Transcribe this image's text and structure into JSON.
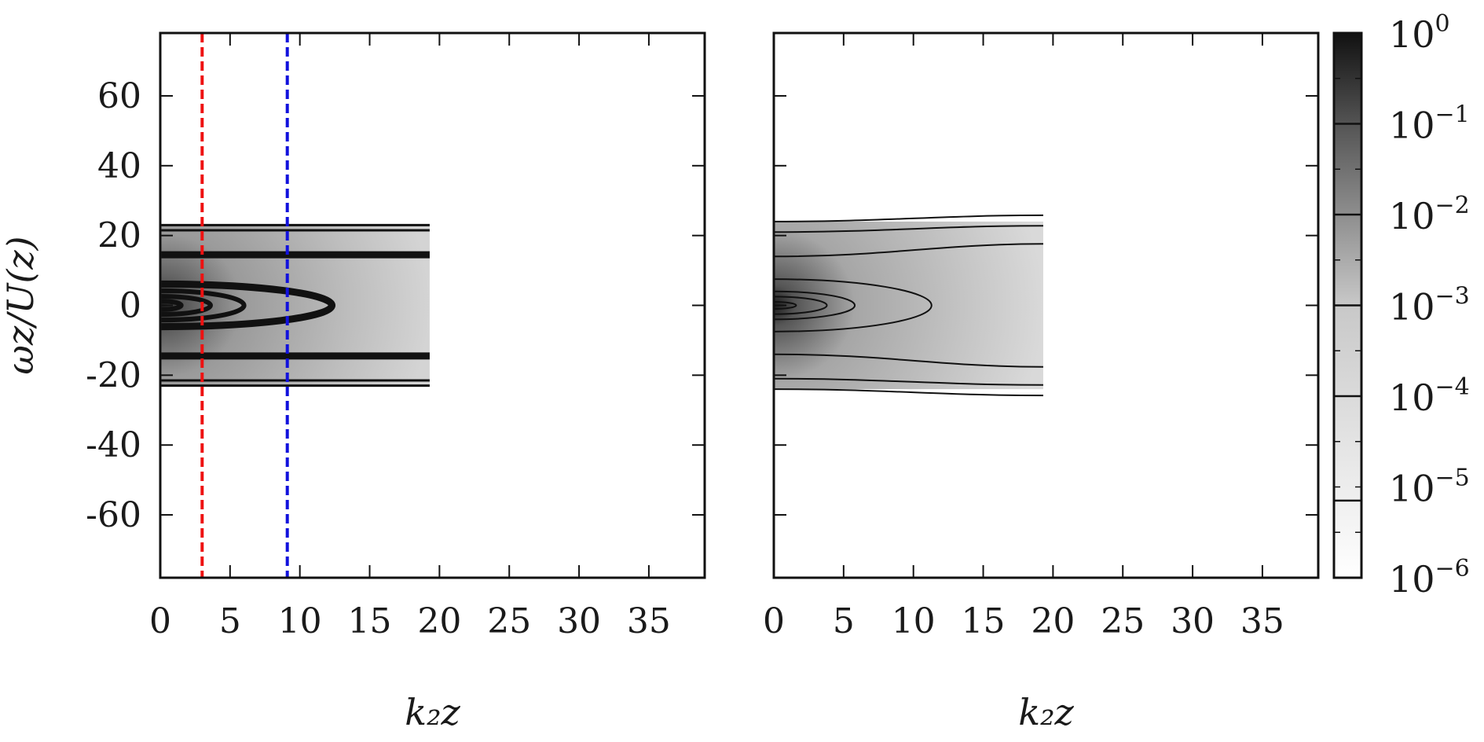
{
  "chart_data": [
    {
      "type": "heatmap",
      "panel": "left",
      "xlabel": "k₂z",
      "ylabel": "ωz/U(z)",
      "xlim": [
        0,
        39
      ],
      "ylim": [
        -78,
        78
      ],
      "x_ticks": [
        0,
        5,
        10,
        15,
        20,
        25,
        30,
        35
      ],
      "y_ticks": [
        60,
        40,
        20,
        0,
        -20,
        -40,
        -60
      ],
      "y_tick_labels": [
        "60",
        "40",
        "20",
        "0",
        "-20",
        "-40",
        "-60"
      ],
      "data_extent": {
        "x": [
          0,
          19.3
        ],
        "y": [
          -23,
          23
        ]
      },
      "contour_ellipses": [
        {
          "x_extent": 1.5,
          "y_half": 1.2
        },
        {
          "x_extent": 3.6,
          "y_half": 2.6
        },
        {
          "x_extent": 6.0,
          "y_half": 4.2
        },
        {
          "x_extent": 12.3,
          "y_half": 6.1
        }
      ],
      "contour_bands_y": [
        14.5,
        -14.5,
        21.5,
        -21.5,
        23.0,
        -23.0
      ],
      "vertical_lines": [
        {
          "x": 3.0,
          "color": "#ee1111",
          "style": "dashed"
        },
        {
          "x": 9.1,
          "color": "#1111dd",
          "style": "dashed"
        }
      ],
      "grid": false
    },
    {
      "type": "heatmap",
      "panel": "right",
      "xlabel": "k₂z",
      "xlim": [
        0,
        39
      ],
      "ylim": [
        -78,
        78
      ],
      "x_ticks": [
        0,
        5,
        10,
        15,
        20,
        25,
        30,
        35
      ],
      "data_extent": {
        "x": [
          0,
          19.3
        ],
        "y": [
          -24,
          24
        ]
      },
      "contour_ellipses": [
        {
          "x_extent": 1.6,
          "y_half": 1.0
        },
        {
          "x_extent": 3.8,
          "y_half": 2.5
        },
        {
          "x_extent": 5.8,
          "y_half": 4.0
        },
        {
          "x_extent": 11.3,
          "y_half": 7.5
        }
      ],
      "contour_lines_y": [
        14.0,
        -14.0,
        21.0,
        -21.0,
        24.0,
        -24.0
      ],
      "grid": false
    }
  ],
  "colorbar": {
    "scale": "log",
    "range": [
      1e-06,
      1
    ],
    "labels": [
      {
        "base": "10",
        "exp": "0",
        "value_exp": 0
      },
      {
        "base": "10",
        "exp": "−1",
        "value_exp": -1
      },
      {
        "base": "10",
        "exp": "−2",
        "value_exp": -2
      },
      {
        "base": "10",
        "exp": "−3",
        "value_exp": -3
      },
      {
        "base": "10",
        "exp": "−4",
        "value_exp": -4
      },
      {
        "base": "10",
        "exp": "−5",
        "value_exp": -5
      },
      {
        "base": "10",
        "exp": "−6",
        "value_exp": -6
      }
    ],
    "contour_levels_exp": [
      -1,
      -2,
      -3,
      -4,
      -5.15
    ],
    "colormap": [
      "#ffffff",
      "#111111"
    ]
  }
}
